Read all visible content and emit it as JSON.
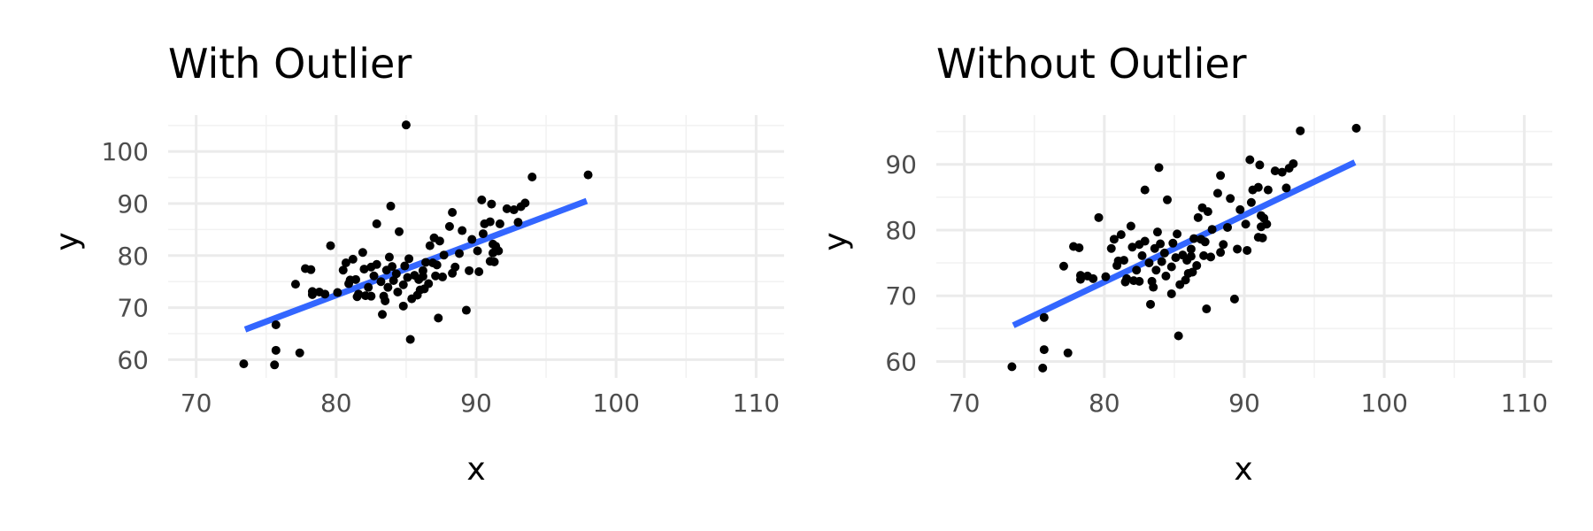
{
  "colors": {
    "points": "#000000",
    "fit_line": "#3366ff",
    "grid": "#ebebeb",
    "tick_text": "#4d4d4d"
  },
  "chart_data": [
    {
      "type": "scatter",
      "title": "With Outlier",
      "xlabel": "x",
      "ylabel": "y",
      "xlim": [
        68,
        112
      ],
      "ylim": [
        56.5,
        107
      ],
      "x_ticks": [
        70,
        80,
        90,
        100,
        110
      ],
      "y_ticks": [
        60,
        70,
        80,
        90,
        100
      ],
      "grid": true,
      "trendline": {
        "type": "linear",
        "x": [
          73.5,
          97.9
        ],
        "y": [
          65.8,
          90.5
        ]
      },
      "points": [
        [
          73.4,
          59.2
        ],
        [
          75.6,
          59.0
        ],
        [
          75.7,
          61.8
        ],
        [
          75.7,
          66.7
        ],
        [
          77.4,
          61.3
        ],
        [
          77.1,
          74.5
        ],
        [
          77.8,
          77.5
        ],
        [
          78.2,
          77.3
        ],
        [
          78.3,
          73.1
        ],
        [
          78.3,
          72.5
        ],
        [
          78.8,
          73.0
        ],
        [
          79.2,
          72.6
        ],
        [
          79.6,
          81.9
        ],
        [
          80.1,
          72.9
        ],
        [
          80.5,
          77.2
        ],
        [
          80.7,
          78.6
        ],
        [
          80.9,
          74.6
        ],
        [
          81.0,
          75.3
        ],
        [
          81.2,
          79.3
        ],
        [
          81.4,
          75.4
        ],
        [
          81.5,
          72.1
        ],
        [
          81.6,
          72.6
        ],
        [
          81.9,
          80.6
        ],
        [
          82.0,
          77.4
        ],
        [
          82.1,
          72.3
        ],
        [
          82.3,
          73.9
        ],
        [
          82.5,
          77.8
        ],
        [
          82.5,
          72.2
        ],
        [
          82.7,
          76.1
        ],
        [
          82.9,
          78.3
        ],
        [
          82.9,
          86.1
        ],
        [
          83.2,
          75.0
        ],
        [
          83.3,
          68.7
        ],
        [
          83.4,
          72.2
        ],
        [
          83.5,
          71.3
        ],
        [
          83.6,
          77.2
        ],
        [
          83.7,
          73.9
        ],
        [
          83.8,
          79.7
        ],
        [
          83.9,
          89.5
        ],
        [
          84.0,
          77.9
        ],
        [
          84.1,
          75.2
        ],
        [
          84.3,
          76.5
        ],
        [
          84.4,
          73.0
        ],
        [
          84.5,
          84.6
        ],
        [
          84.8,
          70.3
        ],
        [
          84.8,
          74.4
        ],
        [
          84.9,
          78.0
        ],
        [
          85.0,
          105.1
        ],
        [
          85.1,
          75.8
        ],
        [
          85.2,
          79.4
        ],
        [
          85.3,
          63.9
        ],
        [
          85.4,
          71.7
        ],
        [
          85.6,
          76.2
        ],
        [
          85.8,
          72.4
        ],
        [
          85.9,
          75.4
        ],
        [
          86.0,
          73.4
        ],
        [
          86.2,
          77.1
        ],
        [
          86.2,
          76.0
        ],
        [
          86.3,
          73.6
        ],
        [
          86.4,
          78.7
        ],
        [
          86.6,
          74.6
        ],
        [
          86.7,
          81.9
        ],
        [
          86.9,
          78.6
        ],
        [
          87.0,
          83.4
        ],
        [
          87.1,
          76.1
        ],
        [
          87.2,
          78.2
        ],
        [
          87.3,
          68.0
        ],
        [
          87.4,
          82.8
        ],
        [
          87.6,
          75.9
        ],
        [
          87.7,
          80.1
        ],
        [
          88.1,
          85.6
        ],
        [
          88.3,
          88.3
        ],
        [
          88.3,
          76.6
        ],
        [
          88.5,
          77.8
        ],
        [
          88.8,
          80.4
        ],
        [
          89.0,
          84.8
        ],
        [
          89.3,
          69.5
        ],
        [
          89.5,
          77.1
        ],
        [
          89.7,
          83.1
        ],
        [
          90.1,
          80.9
        ],
        [
          90.2,
          76.9
        ],
        [
          90.4,
          90.7
        ],
        [
          90.5,
          84.2
        ],
        [
          90.6,
          86.1
        ],
        [
          91.0,
          86.5
        ],
        [
          91.0,
          78.9
        ],
        [
          91.1,
          89.9
        ],
        [
          91.2,
          80.5
        ],
        [
          91.2,
          82.2
        ],
        [
          91.3,
          78.8
        ],
        [
          91.4,
          81.8
        ],
        [
          91.6,
          80.9
        ],
        [
          91.7,
          86.1
        ],
        [
          92.2,
          89.0
        ],
        [
          92.7,
          88.8
        ],
        [
          93.0,
          86.4
        ],
        [
          93.2,
          89.4
        ],
        [
          93.5,
          90.1
        ],
        [
          94.0,
          95.1
        ],
        [
          98.0,
          95.5
        ]
      ]
    },
    {
      "type": "scatter",
      "title": "Without Outlier",
      "xlabel": "x",
      "ylabel": "y",
      "xlim": [
        68,
        112
      ],
      "ylim": [
        57.5,
        97.5
      ],
      "x_ticks": [
        70,
        80,
        90,
        100,
        110
      ],
      "y_ticks": [
        60,
        70,
        80,
        90
      ],
      "grid": true,
      "trendline": {
        "type": "linear",
        "x": [
          73.5,
          97.9
        ],
        "y": [
          65.5,
          90.3
        ]
      },
      "points": [
        [
          73.4,
          59.2
        ],
        [
          75.6,
          59.0
        ],
        [
          75.7,
          61.8
        ],
        [
          75.7,
          66.7
        ],
        [
          77.4,
          61.3
        ],
        [
          77.1,
          74.5
        ],
        [
          77.8,
          77.5
        ],
        [
          78.2,
          77.3
        ],
        [
          78.3,
          73.1
        ],
        [
          78.3,
          72.5
        ],
        [
          78.8,
          73.0
        ],
        [
          79.2,
          72.6
        ],
        [
          79.6,
          81.9
        ],
        [
          80.1,
          72.9
        ],
        [
          80.5,
          77.2
        ],
        [
          80.7,
          78.6
        ],
        [
          80.9,
          74.6
        ],
        [
          81.0,
          75.3
        ],
        [
          81.2,
          79.3
        ],
        [
          81.4,
          75.4
        ],
        [
          81.5,
          72.1
        ],
        [
          81.6,
          72.6
        ],
        [
          81.9,
          80.6
        ],
        [
          82.0,
          77.4
        ],
        [
          82.1,
          72.3
        ],
        [
          82.3,
          73.9
        ],
        [
          82.5,
          77.8
        ],
        [
          82.5,
          72.2
        ],
        [
          82.7,
          76.1
        ],
        [
          82.9,
          78.3
        ],
        [
          82.9,
          86.1
        ],
        [
          83.2,
          75.0
        ],
        [
          83.3,
          68.7
        ],
        [
          83.4,
          72.2
        ],
        [
          83.5,
          71.3
        ],
        [
          83.6,
          77.2
        ],
        [
          83.7,
          73.9
        ],
        [
          83.8,
          79.7
        ],
        [
          83.9,
          89.5
        ],
        [
          84.0,
          77.9
        ],
        [
          84.1,
          75.2
        ],
        [
          84.3,
          76.5
        ],
        [
          84.4,
          73.0
        ],
        [
          84.5,
          84.6
        ],
        [
          84.8,
          70.3
        ],
        [
          84.8,
          74.4
        ],
        [
          84.9,
          78.0
        ],
        [
          85.1,
          75.8
        ],
        [
          85.2,
          79.4
        ],
        [
          85.3,
          63.9
        ],
        [
          85.4,
          71.7
        ],
        [
          85.6,
          76.2
        ],
        [
          85.8,
          72.4
        ],
        [
          85.9,
          75.4
        ],
        [
          86.0,
          73.4
        ],
        [
          86.2,
          77.1
        ],
        [
          86.2,
          76.0
        ],
        [
          86.3,
          73.6
        ],
        [
          86.4,
          78.7
        ],
        [
          86.6,
          74.6
        ],
        [
          86.7,
          81.9
        ],
        [
          86.9,
          78.6
        ],
        [
          87.0,
          83.4
        ],
        [
          87.1,
          76.1
        ],
        [
          87.2,
          78.2
        ],
        [
          87.3,
          68.0
        ],
        [
          87.4,
          82.8
        ],
        [
          87.6,
          75.9
        ],
        [
          87.7,
          80.1
        ],
        [
          88.1,
          85.6
        ],
        [
          88.3,
          88.3
        ],
        [
          88.3,
          76.6
        ],
        [
          88.5,
          77.8
        ],
        [
          88.8,
          80.4
        ],
        [
          89.0,
          84.8
        ],
        [
          89.3,
          69.5
        ],
        [
          89.5,
          77.1
        ],
        [
          89.7,
          83.1
        ],
        [
          90.1,
          80.9
        ],
        [
          90.2,
          76.9
        ],
        [
          90.4,
          90.7
        ],
        [
          90.5,
          84.2
        ],
        [
          90.6,
          86.1
        ],
        [
          91.0,
          86.5
        ],
        [
          91.0,
          78.9
        ],
        [
          91.1,
          89.9
        ],
        [
          91.2,
          80.5
        ],
        [
          91.2,
          82.2
        ],
        [
          91.3,
          78.8
        ],
        [
          91.4,
          81.8
        ],
        [
          91.6,
          80.9
        ],
        [
          91.7,
          86.1
        ],
        [
          92.2,
          89.0
        ],
        [
          92.7,
          88.8
        ],
        [
          93.0,
          86.4
        ],
        [
          93.2,
          89.4
        ],
        [
          93.5,
          90.1
        ],
        [
          94.0,
          95.1
        ],
        [
          98.0,
          95.5
        ]
      ]
    }
  ]
}
